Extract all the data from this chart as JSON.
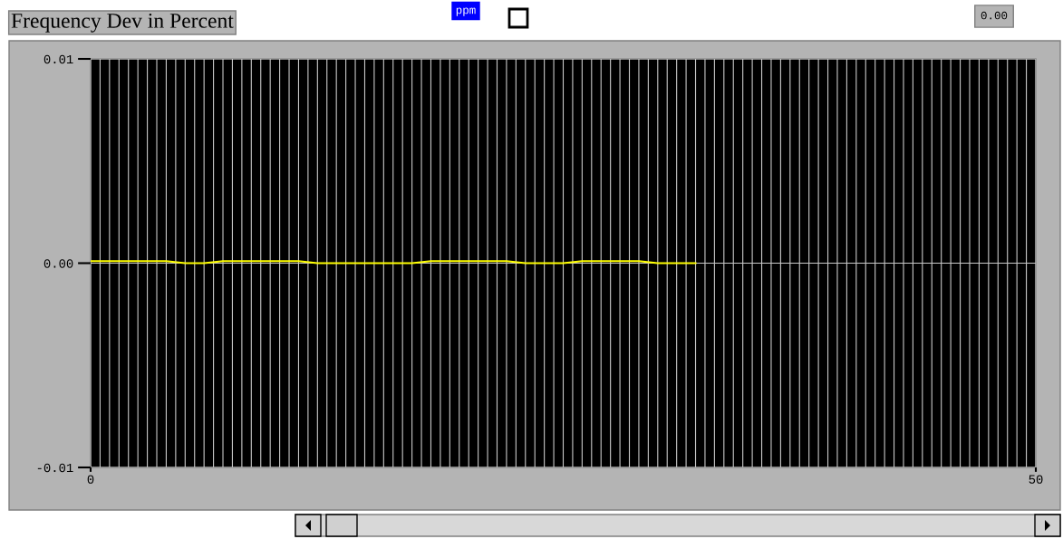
{
  "chart_data": {
    "type": "line",
    "title": "Frequency Dev in Percent",
    "annotations": [
      "ppm",
      "0.00"
    ],
    "x": [
      0,
      4,
      5,
      6,
      7,
      11,
      12,
      17,
      18,
      22,
      23,
      25,
      26,
      29,
      30,
      32
    ],
    "series": [
      {
        "color": "#ffff00",
        "values": [
          0.0001,
          0.0001,
          0,
          0,
          0.0001,
          0.0001,
          0,
          0,
          0.0001,
          0.0001,
          0,
          0,
          0.0001,
          0.0001,
          0,
          0
        ]
      }
    ],
    "xlim": [
      0,
      50
    ],
    "ylim": [
      -0.01,
      0.01
    ],
    "yticks": [
      {
        "value": -0.01,
        "label": "-0.01"
      },
      {
        "value": 0,
        "label": "0.00"
      },
      {
        "value": 0.01,
        "label": "0.01"
      }
    ],
    "xticks": [
      0,
      {
        "value": 0.5,
        "label": null
      },
      {
        "value": 1,
        "label": null
      },
      {
        "value": 1.5,
        "label": null
      },
      {
        "value": 2,
        "label": null
      },
      {
        "value": 2.5,
        "label": null
      },
      {
        "value": 3,
        "label": null
      },
      {
        "value": 3.5,
        "label": null
      },
      {
        "value": 4,
        "label": null
      },
      {
        "value": 4.5,
        "label": null
      },
      {
        "value": 5,
        "label": null
      },
      {
        "value": 5.5,
        "label": null
      },
      {
        "value": 6,
        "label": null
      },
      {
        "value": 6.5,
        "label": null
      },
      {
        "value": 7,
        "label": null
      },
      {
        "value": 7.5,
        "label": null
      },
      {
        "value": 8,
        "label": null
      },
      {
        "value": 8.5,
        "label": null
      },
      {
        "value": 9,
        "label": null
      },
      {
        "value": 9.5,
        "label": null
      },
      {
        "value": 10,
        "label": null
      },
      {
        "value": 10.5,
        "label": null
      },
      {
        "value": 11,
        "label": null
      },
      {
        "value": 11.5,
        "label": null
      },
      {
        "value": 12,
        "label": null
      },
      {
        "value": 12.5,
        "label": null
      },
      {
        "value": 13,
        "label": null
      },
      {
        "value": 13.5,
        "label": null
      },
      {
        "value": 14,
        "label": null
      },
      {
        "value": 14.5,
        "label": null
      },
      {
        "value": 15,
        "label": null
      },
      {
        "value": 15.5,
        "label": null
      },
      {
        "value": 16,
        "label": null
      },
      {
        "value": 16.5,
        "label": null
      },
      {
        "value": 17,
        "label": null
      },
      {
        "value": 17.5,
        "label": null
      },
      {
        "value": 18,
        "label": null
      },
      {
        "value": 18.5,
        "label": null
      },
      {
        "value": 19,
        "label": null
      },
      {
        "value": 19.5,
        "label": null
      },
      {
        "value": 20,
        "label": null
      },
      {
        "value": 20.5,
        "label": null
      },
      {
        "value": 21,
        "label": null
      },
      {
        "value": 21.5,
        "label": null
      },
      {
        "value": 22,
        "label": null
      },
      {
        "value": 22.5,
        "label": null
      },
      {
        "value": 23,
        "label": null
      },
      {
        "value": 23.5,
        "label": null
      },
      {
        "value": 24,
        "label": null
      },
      {
        "value": 24.5,
        "label": null
      },
      {
        "value": 25,
        "label": null
      },
      {
        "value": 25.5,
        "label": null
      },
      {
        "value": 26,
        "label": null
      },
      {
        "value": 26.5,
        "label": null
      },
      {
        "value": 27,
        "label": null
      },
      {
        "value": 27.5,
        "label": null
      },
      {
        "value": 28,
        "label": null
      },
      {
        "value": 28.5,
        "label": null
      },
      {
        "value": 29,
        "label": null
      },
      {
        "value": 29.5,
        "label": null
      },
      {
        "value": 30,
        "label": null
      },
      {
        "value": 30.5,
        "label": null
      },
      {
        "value": 31,
        "label": null
      },
      {
        "value": 31.5,
        "label": null
      },
      {
        "value": 32,
        "label": null
      },
      {
        "value": 32.5,
        "label": null
      },
      {
        "value": 33,
        "label": null
      },
      {
        "value": 33.5,
        "label": null
      },
      {
        "value": 34,
        "label": null
      },
      {
        "value": 34.5,
        "label": null
      },
      {
        "value": 35,
        "label": null
      },
      {
        "value": 35.5,
        "label": null
      },
      {
        "value": 36,
        "label": null
      },
      {
        "value": 36.5,
        "label": null
      },
      {
        "value": 37,
        "label": null
      },
      {
        "value": 37.5,
        "label": null
      },
      {
        "value": 38,
        "label": null
      },
      {
        "value": 38.5,
        "label": null
      },
      {
        "value": 39,
        "label": null
      },
      {
        "value": 39.5,
        "label": null
      },
      {
        "value": 40,
        "label": null
      },
      {
        "value": 40.5,
        "label": null
      },
      {
        "value": 41,
        "label": null
      },
      {
        "value": 41.5,
        "label": null
      },
      {
        "value": 42,
        "label": null
      },
      {
        "value": 42.5,
        "label": null
      },
      {
        "value": 43,
        "label": null
      },
      {
        "value": 43.5,
        "label": null
      },
      {
        "value": 44,
        "label": null
      },
      {
        "value": 44.5,
        "label": null
      },
      {
        "value": 45,
        "label": null
      },
      {
        "value": 45.5,
        "label": null
      },
      {
        "value": 46,
        "label": null
      },
      {
        "value": 46.5,
        "label": null
      },
      {
        "value": 47,
        "label": null
      },
      {
        "value": 47.5,
        "label": null
      },
      {
        "value": 48,
        "label": null
      },
      {
        "value": 48.5,
        "label": null
      },
      {
        "value": 49,
        "label": null
      },
      {
        "value": 49.5,
        "label": null
      },
      50
    ],
    "grid": true,
    "line_style": "solid",
    "marker": "none"
  }
}
